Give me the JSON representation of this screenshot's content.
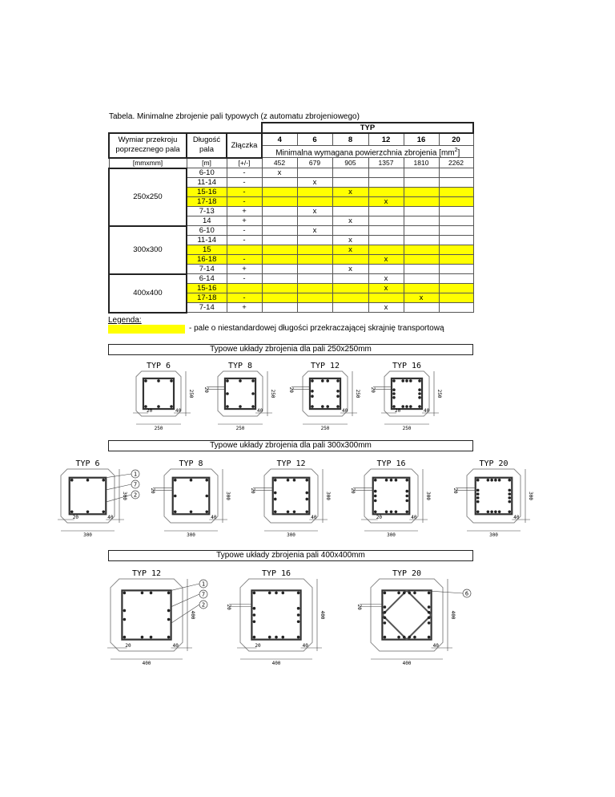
{
  "caption": "Tabela. Minimalne zbrojenie pali typowych (z automatu zbrojeniowego)",
  "table": {
    "typ_label": "TYP",
    "col_dim": "Wymiar przekroju poprzecznego pala",
    "col_len": "Długość pala",
    "col_joint": "Złączka",
    "types": [
      "4",
      "6",
      "8",
      "12",
      "16",
      "20"
    ],
    "area_label": "Minimalna wymagana powierzchnia zbrojenia [mm",
    "area_sup": "2",
    "area_close": "]",
    "units": [
      "[mmxmm]",
      "[m]",
      "[+/-]"
    ],
    "areas": [
      "452",
      "679",
      "905",
      "1357",
      "1810",
      "2262"
    ],
    "groups": [
      {
        "dim": "250x250",
        "rows": [
          {
            "len": "6-10",
            "joint": "-",
            "x": 0,
            "hl": false
          },
          {
            "len": "11-14",
            "joint": "-",
            "x": 1,
            "hl": false
          },
          {
            "len": "15-16",
            "joint": "-",
            "x": 2,
            "hl": true
          },
          {
            "len": "17-18",
            "joint": "-",
            "x": 3,
            "hl": true
          },
          {
            "len": "7-13",
            "joint": "+",
            "x": 1,
            "hl": false
          },
          {
            "len": "14",
            "joint": "+",
            "x": 2,
            "hl": false
          }
        ]
      },
      {
        "dim": "300x300",
        "rows": [
          {
            "len": "6-10",
            "joint": "-",
            "x": 1,
            "hl": false
          },
          {
            "len": "11-14",
            "joint": "-",
            "x": 2,
            "hl": false
          },
          {
            "len": "15",
            "joint": "",
            "x": 2,
            "hl": true
          },
          {
            "len": "16-18",
            "joint": "-",
            "x": 3,
            "hl": true
          },
          {
            "len": "7-14",
            "joint": "+",
            "x": 2,
            "hl": false
          }
        ]
      },
      {
        "dim": "400x400",
        "rows": [
          {
            "len": "6-14",
            "joint": "-",
            "x": 3,
            "hl": false
          },
          {
            "len": "15-16",
            "joint": "",
            "x": 3,
            "hl": true
          },
          {
            "len": "17-18",
            "joint": "-",
            "x": 4,
            "hl": true
          },
          {
            "len": "7-14",
            "joint": "+",
            "x": 3,
            "hl": false
          }
        ]
      }
    ],
    "mark": "x",
    "highlight_color": "#ffff00"
  },
  "legend": {
    "title": "Legenda:",
    "text": "- pale o niestandardowej długości przekraczającej skrajnię transportową"
  },
  "sections": [
    {
      "title": "Typowe układy zbrojenia dla pali 250x250mm",
      "size": "250",
      "piles": [
        {
          "label": "TYP 6",
          "bars": 6,
          "d20": "20",
          "d40": "40",
          "side": "250",
          "cover": "",
          "marks": []
        },
        {
          "label": "TYP 8",
          "bars": 8,
          "d20": "",
          "d40": "40",
          "side": "250",
          "cover": "20",
          "marks": []
        },
        {
          "label": "TYP 12",
          "bars": 12,
          "d20": "",
          "d40": "40",
          "side": "250",
          "cover": "20",
          "marks": []
        },
        {
          "label": "TYP 16",
          "bars": 16,
          "d20": "20",
          "d40": "40",
          "side": "250",
          "cover": "20",
          "marks": []
        }
      ]
    },
    {
      "title": "Typowe układy zbrojenia dla pali 300x300mm",
      "size": "300",
      "piles": [
        {
          "label": "TYP 6",
          "bars": 6,
          "d20": "20",
          "d40": "40",
          "side": "300",
          "cover": "",
          "marks": [
            "1",
            "7",
            "2"
          ]
        },
        {
          "label": "TYP 8",
          "bars": 8,
          "d20": "",
          "d40": "40",
          "side": "300",
          "cover": "20",
          "marks": []
        },
        {
          "label": "TYP 12",
          "bars": 12,
          "d20": "",
          "d40": "40",
          "side": "300",
          "cover": "20",
          "marks": []
        },
        {
          "label": "TYP 16",
          "bars": 16,
          "d20": "20",
          "d40": "40",
          "side": "300",
          "cover": "20",
          "marks": []
        },
        {
          "label": "TYP 20",
          "bars": 20,
          "d20": "",
          "d40": "40",
          "side": "300",
          "cover": "20",
          "marks": []
        }
      ]
    },
    {
      "title": "Typowe układy zbrojenia pali 400x400mm",
      "size": "400",
      "piles": [
        {
          "label": "TYP 12",
          "bars": 12,
          "d20": "20",
          "d40": "40",
          "side": "400",
          "cover": "",
          "marks": [
            "1",
            "7",
            "2"
          ]
        },
        {
          "label": "TYP 16",
          "bars": 16,
          "d20": "20",
          "d40": "40",
          "side": "400",
          "cover": "20",
          "marks": []
        },
        {
          "label": "TYP 20",
          "bars": 20,
          "d20": "",
          "d40": "40",
          "side": "400",
          "cover": "20",
          "marks": [
            "6"
          ],
          "diamond": true
        }
      ]
    }
  ]
}
